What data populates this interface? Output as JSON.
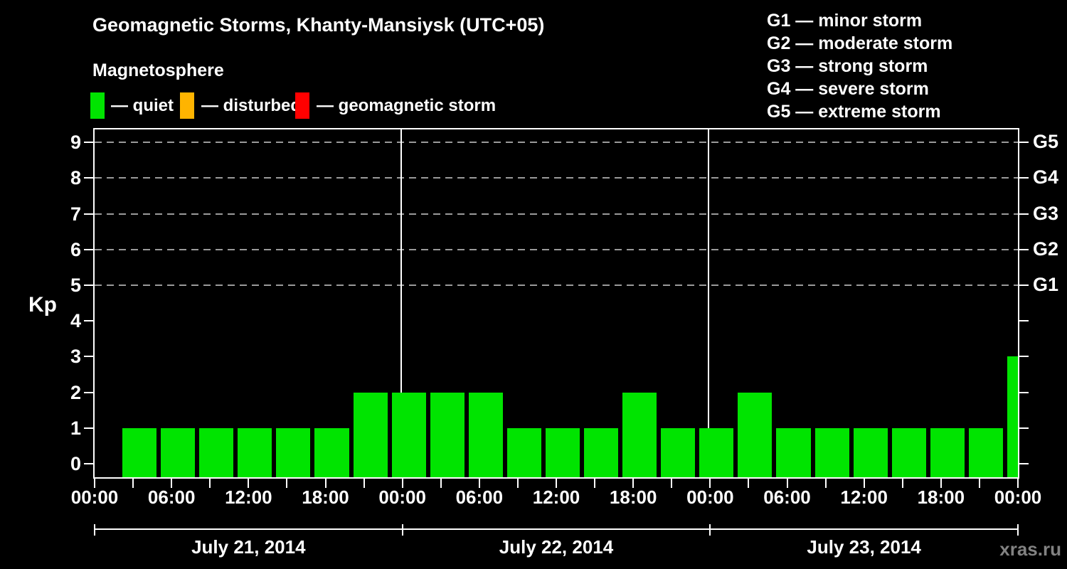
{
  "header": {
    "title": "Geomagnetic Storms, Khanty-Mansiysk (UTC+05)",
    "subtitle": "Magnetosphere"
  },
  "legend": {
    "items": [
      {
        "name": "quiet",
        "label": "— quiet",
        "color": "#00e400"
      },
      {
        "name": "disturbed",
        "label": "— disturbed",
        "color": "#ffb400"
      },
      {
        "name": "geomagnetic-storm",
        "label": "— geomagnetic storm",
        "color": "#ff0000"
      }
    ]
  },
  "storm_scale": {
    "items": [
      {
        "code": "G1",
        "kp": 5,
        "label": "G1 — minor storm"
      },
      {
        "code": "G2",
        "kp": 6,
        "label": "G2 — moderate storm"
      },
      {
        "code": "G3",
        "kp": 7,
        "label": "G3 — strong storm"
      },
      {
        "code": "G4",
        "kp": 8,
        "label": "G4 — severe storm"
      },
      {
        "code": "G5",
        "kp": 9,
        "label": "G5 — extreme storm"
      }
    ]
  },
  "watermark": "xras.ru",
  "chart_data": {
    "type": "bar",
    "title": "Geomagnetic Storms, Khanty-Mansiysk (UTC+05)",
    "ylabel": "Kp",
    "ylim": [
      0,
      9
    ],
    "y_ticks": [
      0,
      1,
      2,
      3,
      4,
      5,
      6,
      7,
      8,
      9
    ],
    "grid_levels_kp": [
      5,
      6,
      7,
      8,
      9
    ],
    "grid_style": "dashed",
    "grid_color": "#9a9a9a",
    "x_span_hours": 72,
    "x_tick_step_hours": 3,
    "x_label_step_hours": 6,
    "x_tick_labels": [
      "00:00",
      "06:00",
      "12:00",
      "18:00",
      "00:00",
      "06:00",
      "12:00",
      "18:00",
      "00:00",
      "06:00",
      "12:00",
      "18:00",
      "00:00"
    ],
    "day_boundary_hours": [
      0,
      24,
      48,
      72
    ],
    "day_divider_hours": [
      24,
      48
    ],
    "bar_interval_hours": 3,
    "first_bar_offset_hours": 2,
    "bar_color": "#00e400",
    "days": [
      {
        "date": "July 21, 2014",
        "kp_values": [
          1,
          1,
          1,
          1,
          1,
          1,
          2,
          2
        ]
      },
      {
        "date": "July 22, 2014",
        "kp_values": [
          2,
          2,
          1,
          1,
          1,
          2,
          1,
          1
        ]
      },
      {
        "date": "July 23, 2014",
        "kp_values": [
          2,
          1,
          1,
          1,
          1,
          1,
          1,
          3
        ]
      }
    ],
    "right_axis_labels": [
      {
        "label": "G1",
        "kp": 5
      },
      {
        "label": "G2",
        "kp": 6
      },
      {
        "label": "G3",
        "kp": 7
      },
      {
        "label": "G4",
        "kp": 8
      },
      {
        "label": "G5",
        "kp": 9
      }
    ],
    "legend_position": "top-left",
    "background": "#000000"
  }
}
